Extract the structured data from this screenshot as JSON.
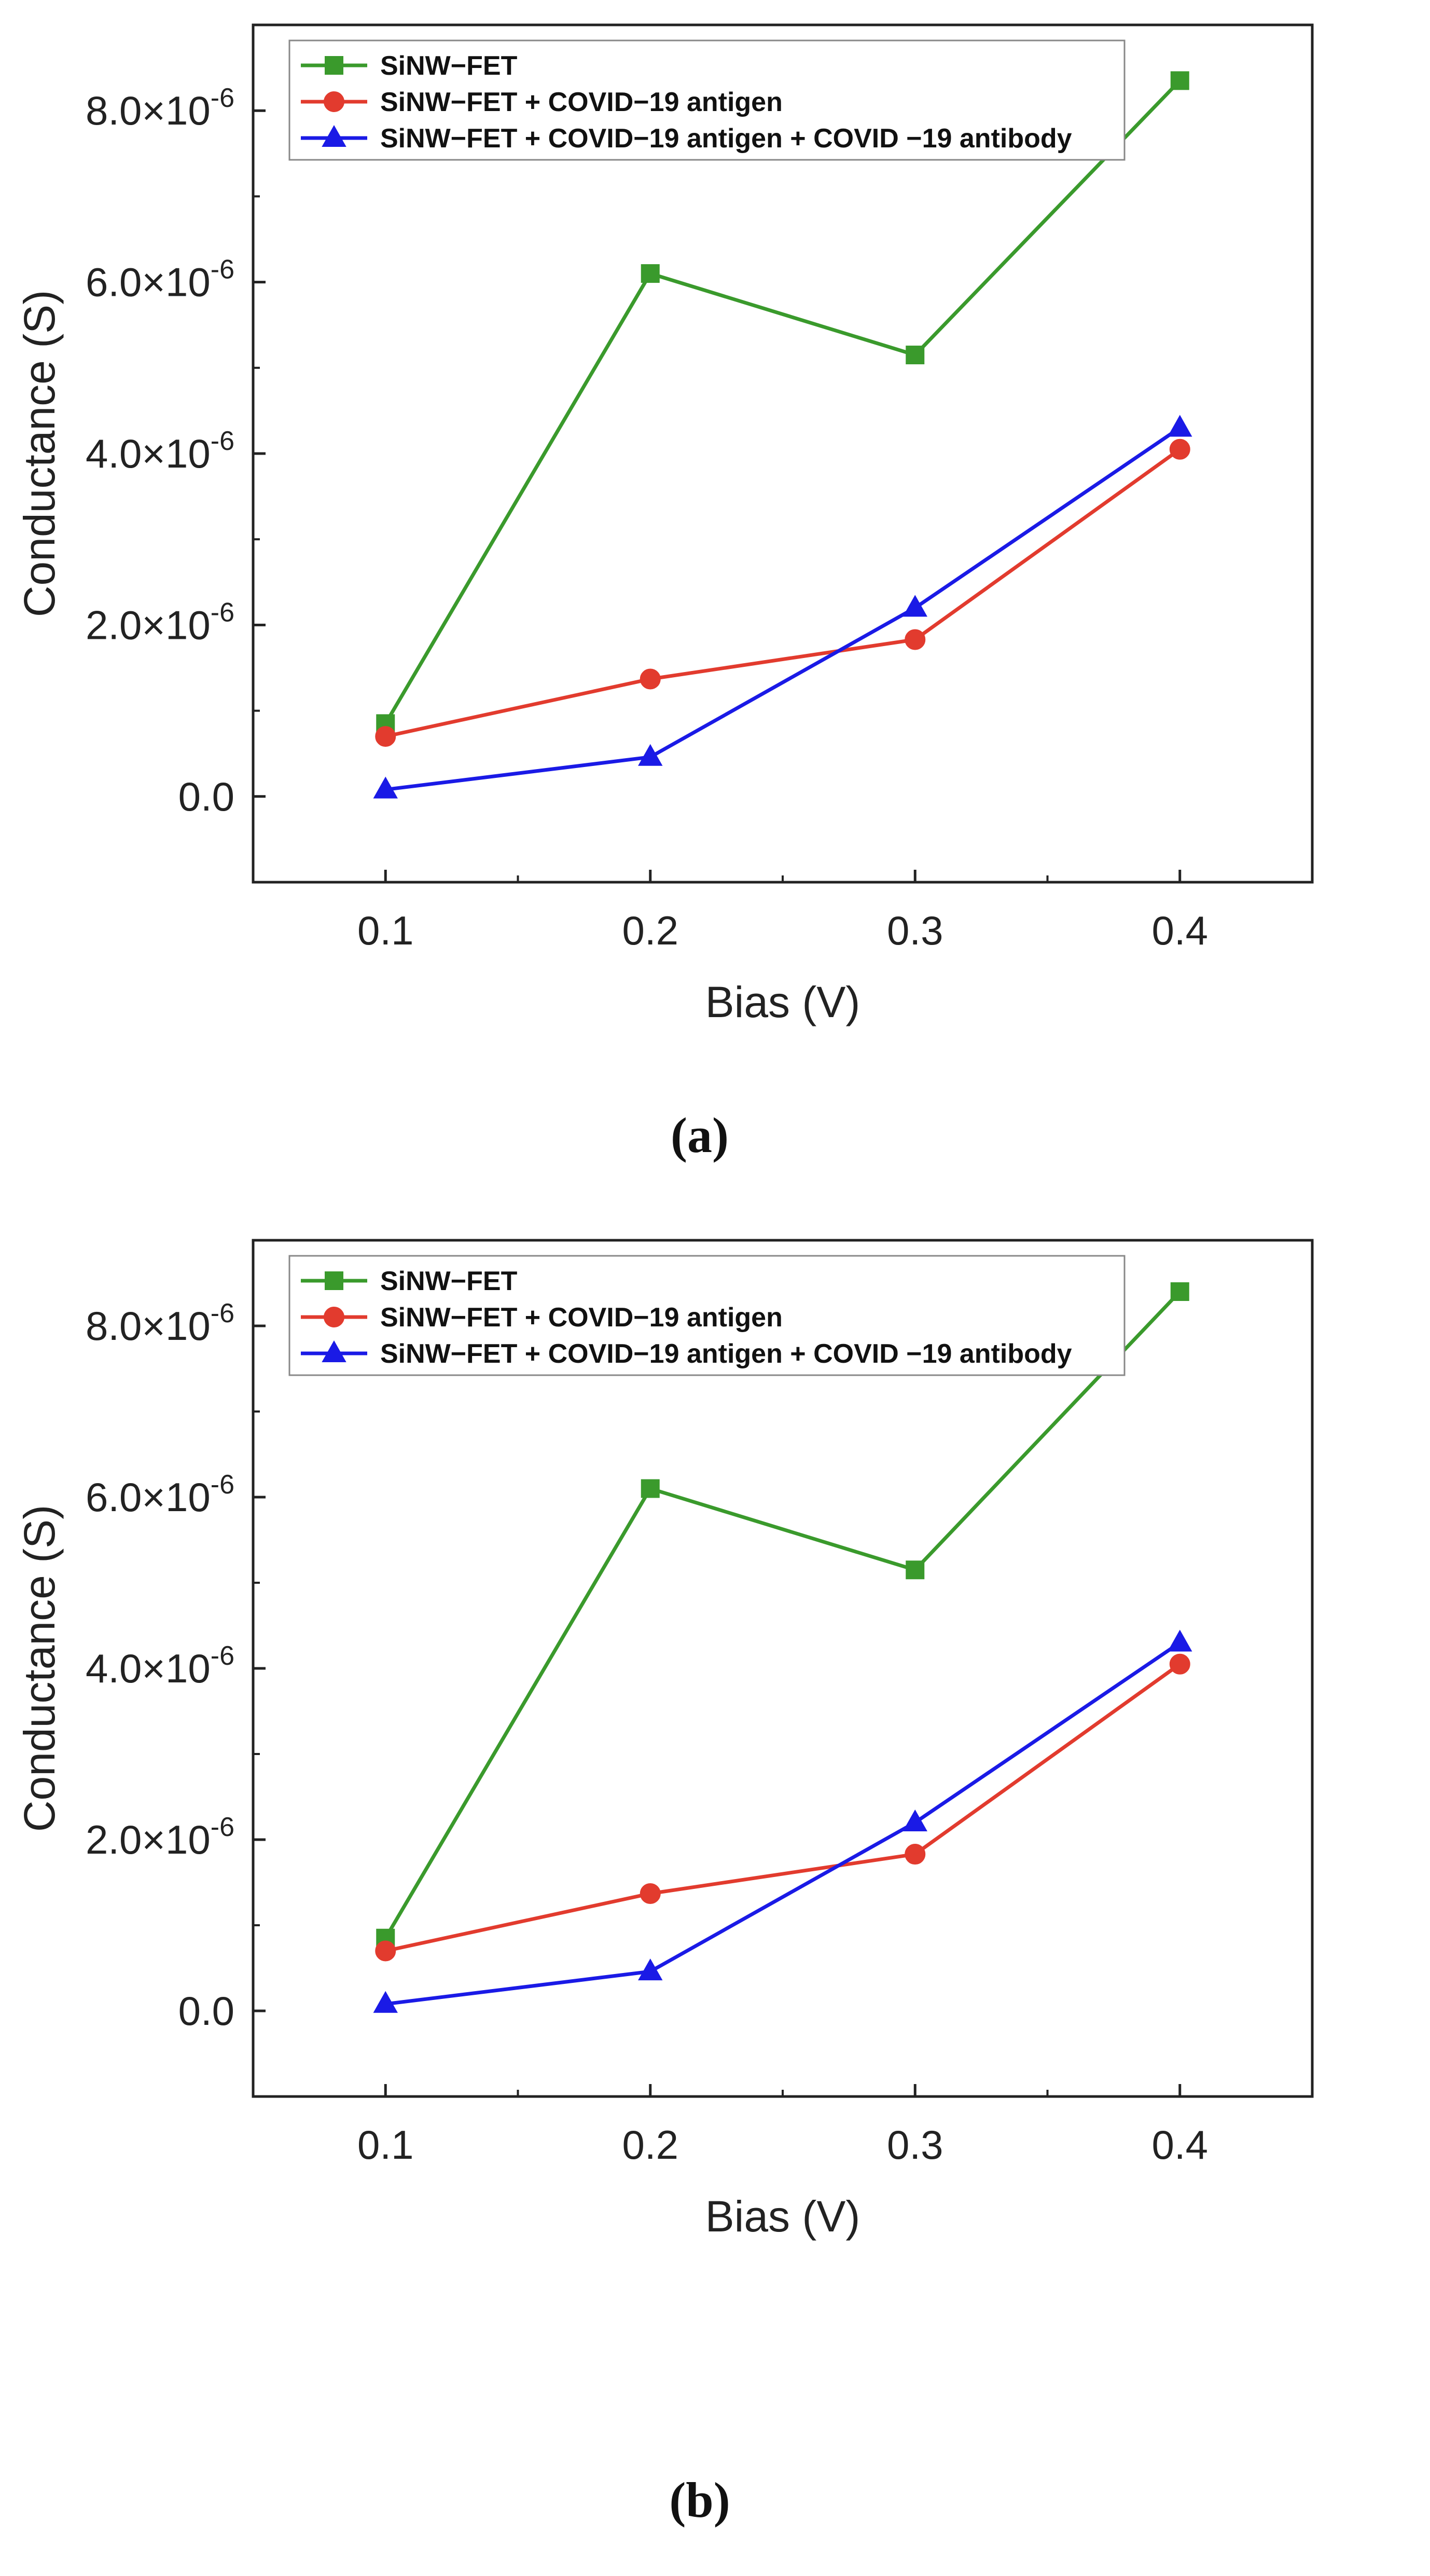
{
  "chart_data": [
    {
      "type": "line",
      "panel": "a",
      "caption": "(a)",
      "title": "",
      "xlabel": "Bias (V)",
      "ylabel": "Conductance (S)",
      "xlim": [
        0.05,
        0.45
      ],
      "ylim": [
        -1e-06,
        9e-06
      ],
      "x": [
        0.1,
        0.2,
        0.3,
        0.4
      ],
      "xticks": [
        0.1,
        0.2,
        0.3,
        0.4
      ],
      "xtick_labels": [
        "0.1",
        "0.2",
        "0.3",
        "0.4"
      ],
      "yticks": [
        0,
        2e-06,
        4e-06,
        6e-06,
        8e-06
      ],
      "ytick_labels": [
        {
          "mantissa": "0.0",
          "exp": ""
        },
        {
          "mantissa": "2.0×10",
          "exp": "-6"
        },
        {
          "mantissa": "4.0×10",
          "exp": "-6"
        },
        {
          "mantissa": "6.0×10",
          "exp": "-6"
        },
        {
          "mantissa": "8.0×10",
          "exp": "-6"
        }
      ],
      "grid": false,
      "legend_position": "top-left",
      "series": [
        {
          "name": "SiNW−FET",
          "marker": "square",
          "color": "#3a9a2c",
          "values": [
            8.5e-07,
            6.1e-06,
            5.15e-06,
            8.35e-06
          ]
        },
        {
          "name": "SiNW−FET + COVID−19 antigen",
          "marker": "circle",
          "color": "#e23b2e",
          "values": [
            7e-07,
            1.37e-06,
            1.83e-06,
            4.05e-06
          ]
        },
        {
          "name": "SiNW−FET + COVID−19 antigen + COVID −19  antibody",
          "marker": "triangle",
          "color": "#1a1ae6",
          "values": [
            8e-08,
            4.6e-07,
            2.2e-06,
            4.3e-06
          ]
        }
      ]
    },
    {
      "type": "line",
      "panel": "b",
      "caption": "(b)",
      "title": "",
      "xlabel": "Bias (V)",
      "ylabel": "Conductance (S)",
      "xlim": [
        0.05,
        0.45
      ],
      "ylim": [
        -1e-06,
        9e-06
      ],
      "x": [
        0.1,
        0.2,
        0.3,
        0.4
      ],
      "xticks": [
        0.1,
        0.2,
        0.3,
        0.4
      ],
      "xtick_labels": [
        "0.1",
        "0.2",
        "0.3",
        "0.4"
      ],
      "yticks": [
        0,
        2e-06,
        4e-06,
        6e-06,
        8e-06
      ],
      "ytick_labels": [
        {
          "mantissa": "0.0",
          "exp": ""
        },
        {
          "mantissa": "2.0×10",
          "exp": "-6"
        },
        {
          "mantissa": "4.0×10",
          "exp": "-6"
        },
        {
          "mantissa": "6.0×10",
          "exp": "-6"
        },
        {
          "mantissa": "8.0×10",
          "exp": "-6"
        }
      ],
      "grid": false,
      "legend_position": "top-left",
      "series": [
        {
          "name": "SiNW−FET",
          "marker": "square",
          "color": "#3a9a2c",
          "values": [
            8.5e-07,
            6.1e-06,
            5.15e-06,
            8.4e-06
          ]
        },
        {
          "name": "SiNW−FET + COVID−19 antigen",
          "marker": "circle",
          "color": "#e23b2e",
          "values": [
            7e-07,
            1.37e-06,
            1.83e-06,
            4.05e-06
          ]
        },
        {
          "name": "SiNW−FET + COVID−19 antigen + COVID −19  antibody",
          "marker": "triangle",
          "color": "#1a1ae6",
          "values": [
            8e-08,
            4.6e-07,
            2.2e-06,
            4.3e-06
          ]
        }
      ]
    }
  ]
}
